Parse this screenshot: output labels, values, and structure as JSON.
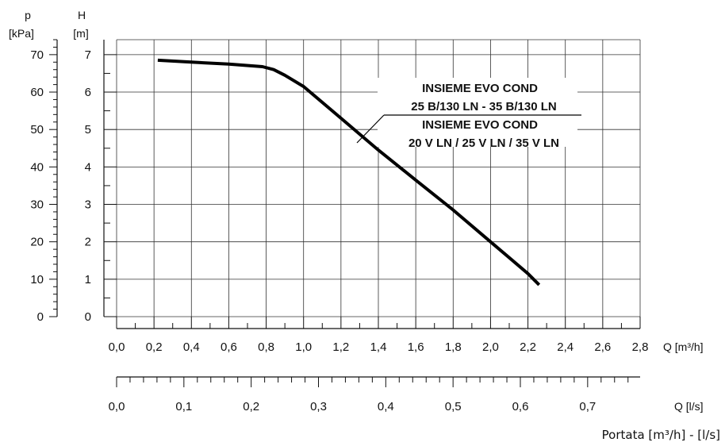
{
  "chart_data": {
    "type": "line",
    "series": [
      {
        "x": [
          0.22,
          0.4,
          0.6,
          0.78,
          0.84,
          0.9,
          1.0,
          1.2,
          1.4,
          1.6,
          1.8,
          2.0,
          2.2,
          2.26
        ],
        "y": [
          6.85,
          6.8,
          6.75,
          6.68,
          6.6,
          6.45,
          6.15,
          5.3,
          4.45,
          3.65,
          2.85,
          2.0,
          1.15,
          0.85
        ]
      }
    ],
    "xlim": [
      0,
      2.8
    ],
    "ylim": [
      0,
      7.4
    ],
    "grid": true,
    "axes": {
      "H": {
        "label_top": "H",
        "label_unit": "[m]",
        "ticks": [
          "0",
          "1",
          "2",
          "3",
          "4",
          "5",
          "6",
          "7"
        ],
        "values": [
          0,
          1,
          2,
          3,
          4,
          5,
          6,
          7
        ]
      },
      "p": {
        "label_top": "p",
        "label_unit": "[kPa]",
        "ticks": [
          "0",
          "10",
          "20",
          "30",
          "40",
          "50",
          "60",
          "70"
        ],
        "values": [
          0,
          10,
          20,
          30,
          40,
          50,
          60,
          70
        ],
        "max": 74
      },
      "Q_m3h": {
        "label": "Q [m³/h]",
        "ticks": [
          "0,0",
          "0,2",
          "0,4",
          "0,6",
          "0,8",
          "1,0",
          "1,2",
          "1,4",
          "1,6",
          "1,8",
          "2,0",
          "2,2",
          "2,4",
          "2,6",
          "2,8"
        ],
        "values": [
          0,
          0.2,
          0.4,
          0.6,
          0.8,
          1.0,
          1.2,
          1.4,
          1.6,
          1.8,
          2.0,
          2.2,
          2.4,
          2.6,
          2.8
        ]
      },
      "Q_ls": {
        "label": "Q [l/s]",
        "ticks": [
          "0,0",
          "0,1",
          "0,2",
          "0,3",
          "0,4",
          "0,5",
          "0,6",
          "0,7"
        ],
        "values": [
          0,
          0.1,
          0.2,
          0.3,
          0.4,
          0.5,
          0.6,
          0.7
        ],
        "max": 0.778
      }
    },
    "annotation": {
      "lines": [
        "INSIEME EVO COND",
        "25 B/130 LN - 35 B/130 LN",
        "INSIEME EVO COND",
        "20 V LN / 25 V LN / 35 V LN"
      ]
    },
    "footer": "Portata [m³/h] - [l/s]"
  },
  "colors": {
    "curve": "#000000",
    "grid": "#333333",
    "axis": "#111111"
  }
}
